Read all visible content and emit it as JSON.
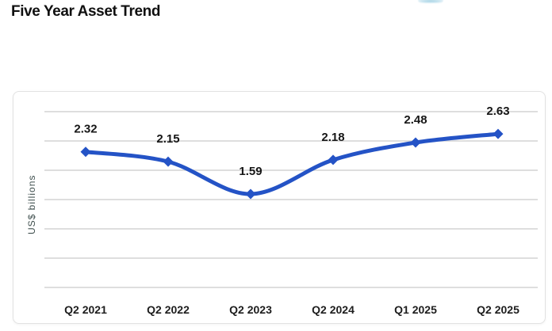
{
  "page": {
    "title": "Five Year Asset Trend"
  },
  "decor": {
    "partial_logo_color": "#8cc6dc"
  },
  "chart_data": {
    "type": "line",
    "title": "Five Year Asset Trend",
    "xlabel": "",
    "ylabel": "US$ billions",
    "categories": [
      "Q2 2021",
      "Q2 2022",
      "Q2 2023",
      "Q2 2024",
      "Q1 2025",
      "Q2 2025"
    ],
    "values": [
      2.32,
      2.15,
      1.59,
      2.18,
      2.48,
      2.63
    ],
    "data_labels": [
      "2.32",
      "2.15",
      "1.59",
      "2.18",
      "2.48",
      "2.63"
    ],
    "ylim": [
      1.2,
      3.0
    ],
    "grid": true,
    "gridline_count": 7,
    "legend_position": "none",
    "y_tick_labels_visible": false,
    "smooth_line": true,
    "marker": "diamond",
    "line_color": "#2453c6",
    "marker_color": "#2453c6",
    "grid_color": "#d9d9d9",
    "label_color": "#161616",
    "axis_label_color": "#3f4f4e"
  }
}
